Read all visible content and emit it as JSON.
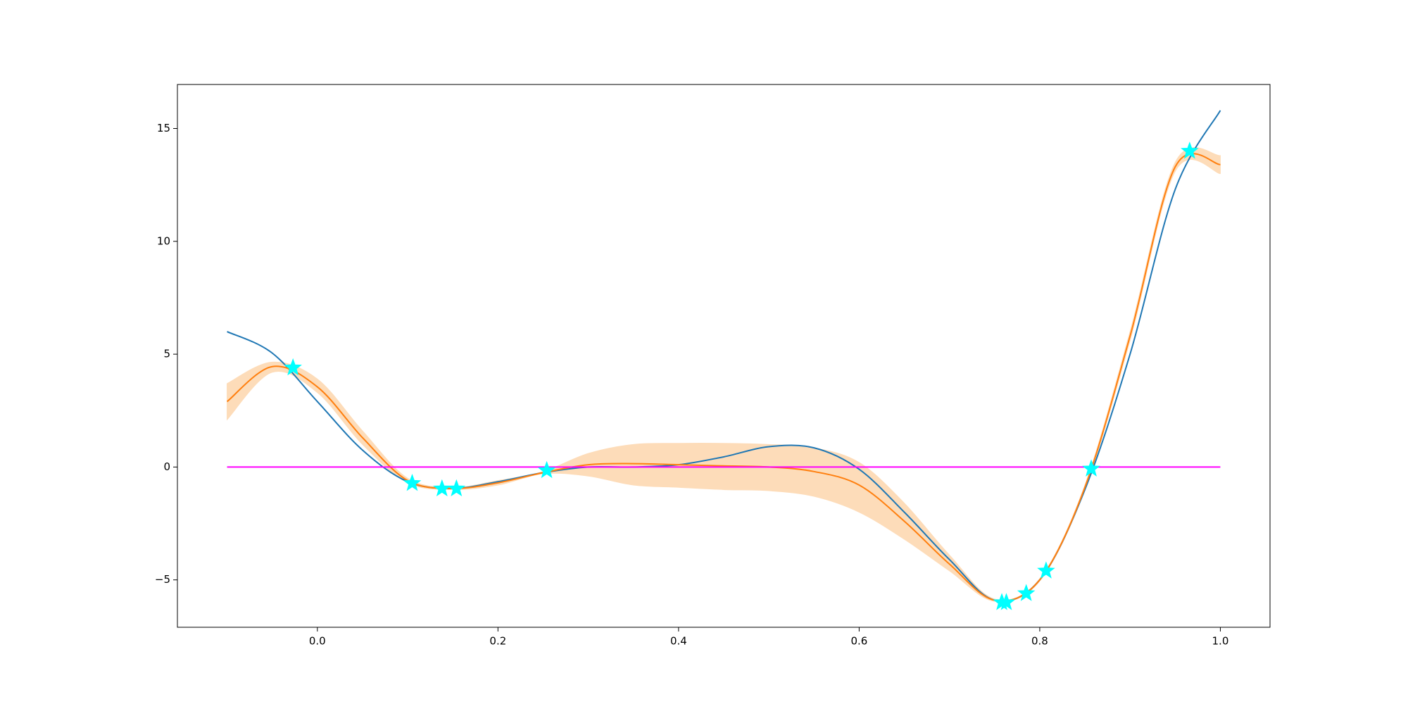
{
  "chart_data": {
    "type": "line",
    "x": [
      -0.1,
      -0.05,
      0.0,
      0.05,
      0.1,
      0.15,
      0.2,
      0.25,
      0.3,
      0.35,
      0.4,
      0.45,
      0.5,
      0.55,
      0.6,
      0.65,
      0.7,
      0.75,
      0.8,
      0.85,
      0.9,
      0.95,
      1.0
    ],
    "xlim": [
      -0.155,
      1.055
    ],
    "ylim": [
      -7.1,
      16.95
    ],
    "xticks": [
      {
        "value": 0,
        "label": "0.0"
      },
      0.2,
      0.4,
      0.6,
      0.8,
      {
        "value": 1,
        "label": "1.0"
      }
    ],
    "yticks": [
      {
        "value": -5,
        "label": "−5"
      },
      0,
      5,
      10,
      15
    ],
    "band": {
      "color": "#fddcb9",
      "lower": [
        2.1,
        4.2,
        3.3,
        1.0,
        -0.7,
        -1.0,
        -0.8,
        -0.3,
        -0.4,
        -0.8,
        -0.9,
        -1.0,
        -1.05,
        -1.3,
        -2.0,
        -3.2,
        -4.6,
        -5.95,
        -5.05,
        -1.0,
        5.6,
        13.1,
        13.0
      ],
      "upper": [
        3.7,
        4.65,
        3.9,
        1.6,
        -0.5,
        -0.9,
        -0.6,
        -0.2,
        0.6,
        1.0,
        1.05,
        1.05,
        1.0,
        0.85,
        0.2,
        -1.6,
        -3.9,
        -5.85,
        -4.95,
        -0.8,
        6.0,
        13.5,
        13.8
      ]
    },
    "series": [
      {
        "color": "#1f77b4",
        "values": [
          6.0,
          5.05,
          2.9,
          0.75,
          -0.65,
          -0.95,
          -0.65,
          -0.25,
          0.0,
          0.0,
          0.1,
          0.45,
          0.9,
          0.85,
          -0.1,
          -2.0,
          -4.1,
          -5.9,
          -5.0,
          -1.0,
          5.0,
          12.3,
          15.8
        ]
      },
      {
        "color": "#ff7f0e",
        "values": [
          2.9,
          4.45,
          3.55,
          1.3,
          -0.6,
          -0.95,
          -0.7,
          -0.25,
          0.1,
          0.15,
          0.1,
          0.05,
          0.0,
          -0.2,
          -0.8,
          -2.4,
          -4.3,
          -5.9,
          -5.0,
          -0.9,
          5.8,
          13.3,
          13.4
        ]
      },
      {
        "color": "#ff00ff",
        "x": [
          -0.1,
          1.0
        ],
        "values": [
          0,
          0
        ]
      }
    ],
    "points": {
      "color": "#00ffff",
      "x": [
        -0.027,
        0.105,
        0.138,
        0.154,
        0.254,
        0.758,
        0.763,
        0.785,
        0.807,
        0.857,
        0.966
      ],
      "values": [
        4.4,
        -0.72,
        -0.96,
        -0.96,
        -0.15,
        -6.0,
        -6.0,
        -5.6,
        -4.6,
        -0.08,
        14.0
      ]
    }
  }
}
